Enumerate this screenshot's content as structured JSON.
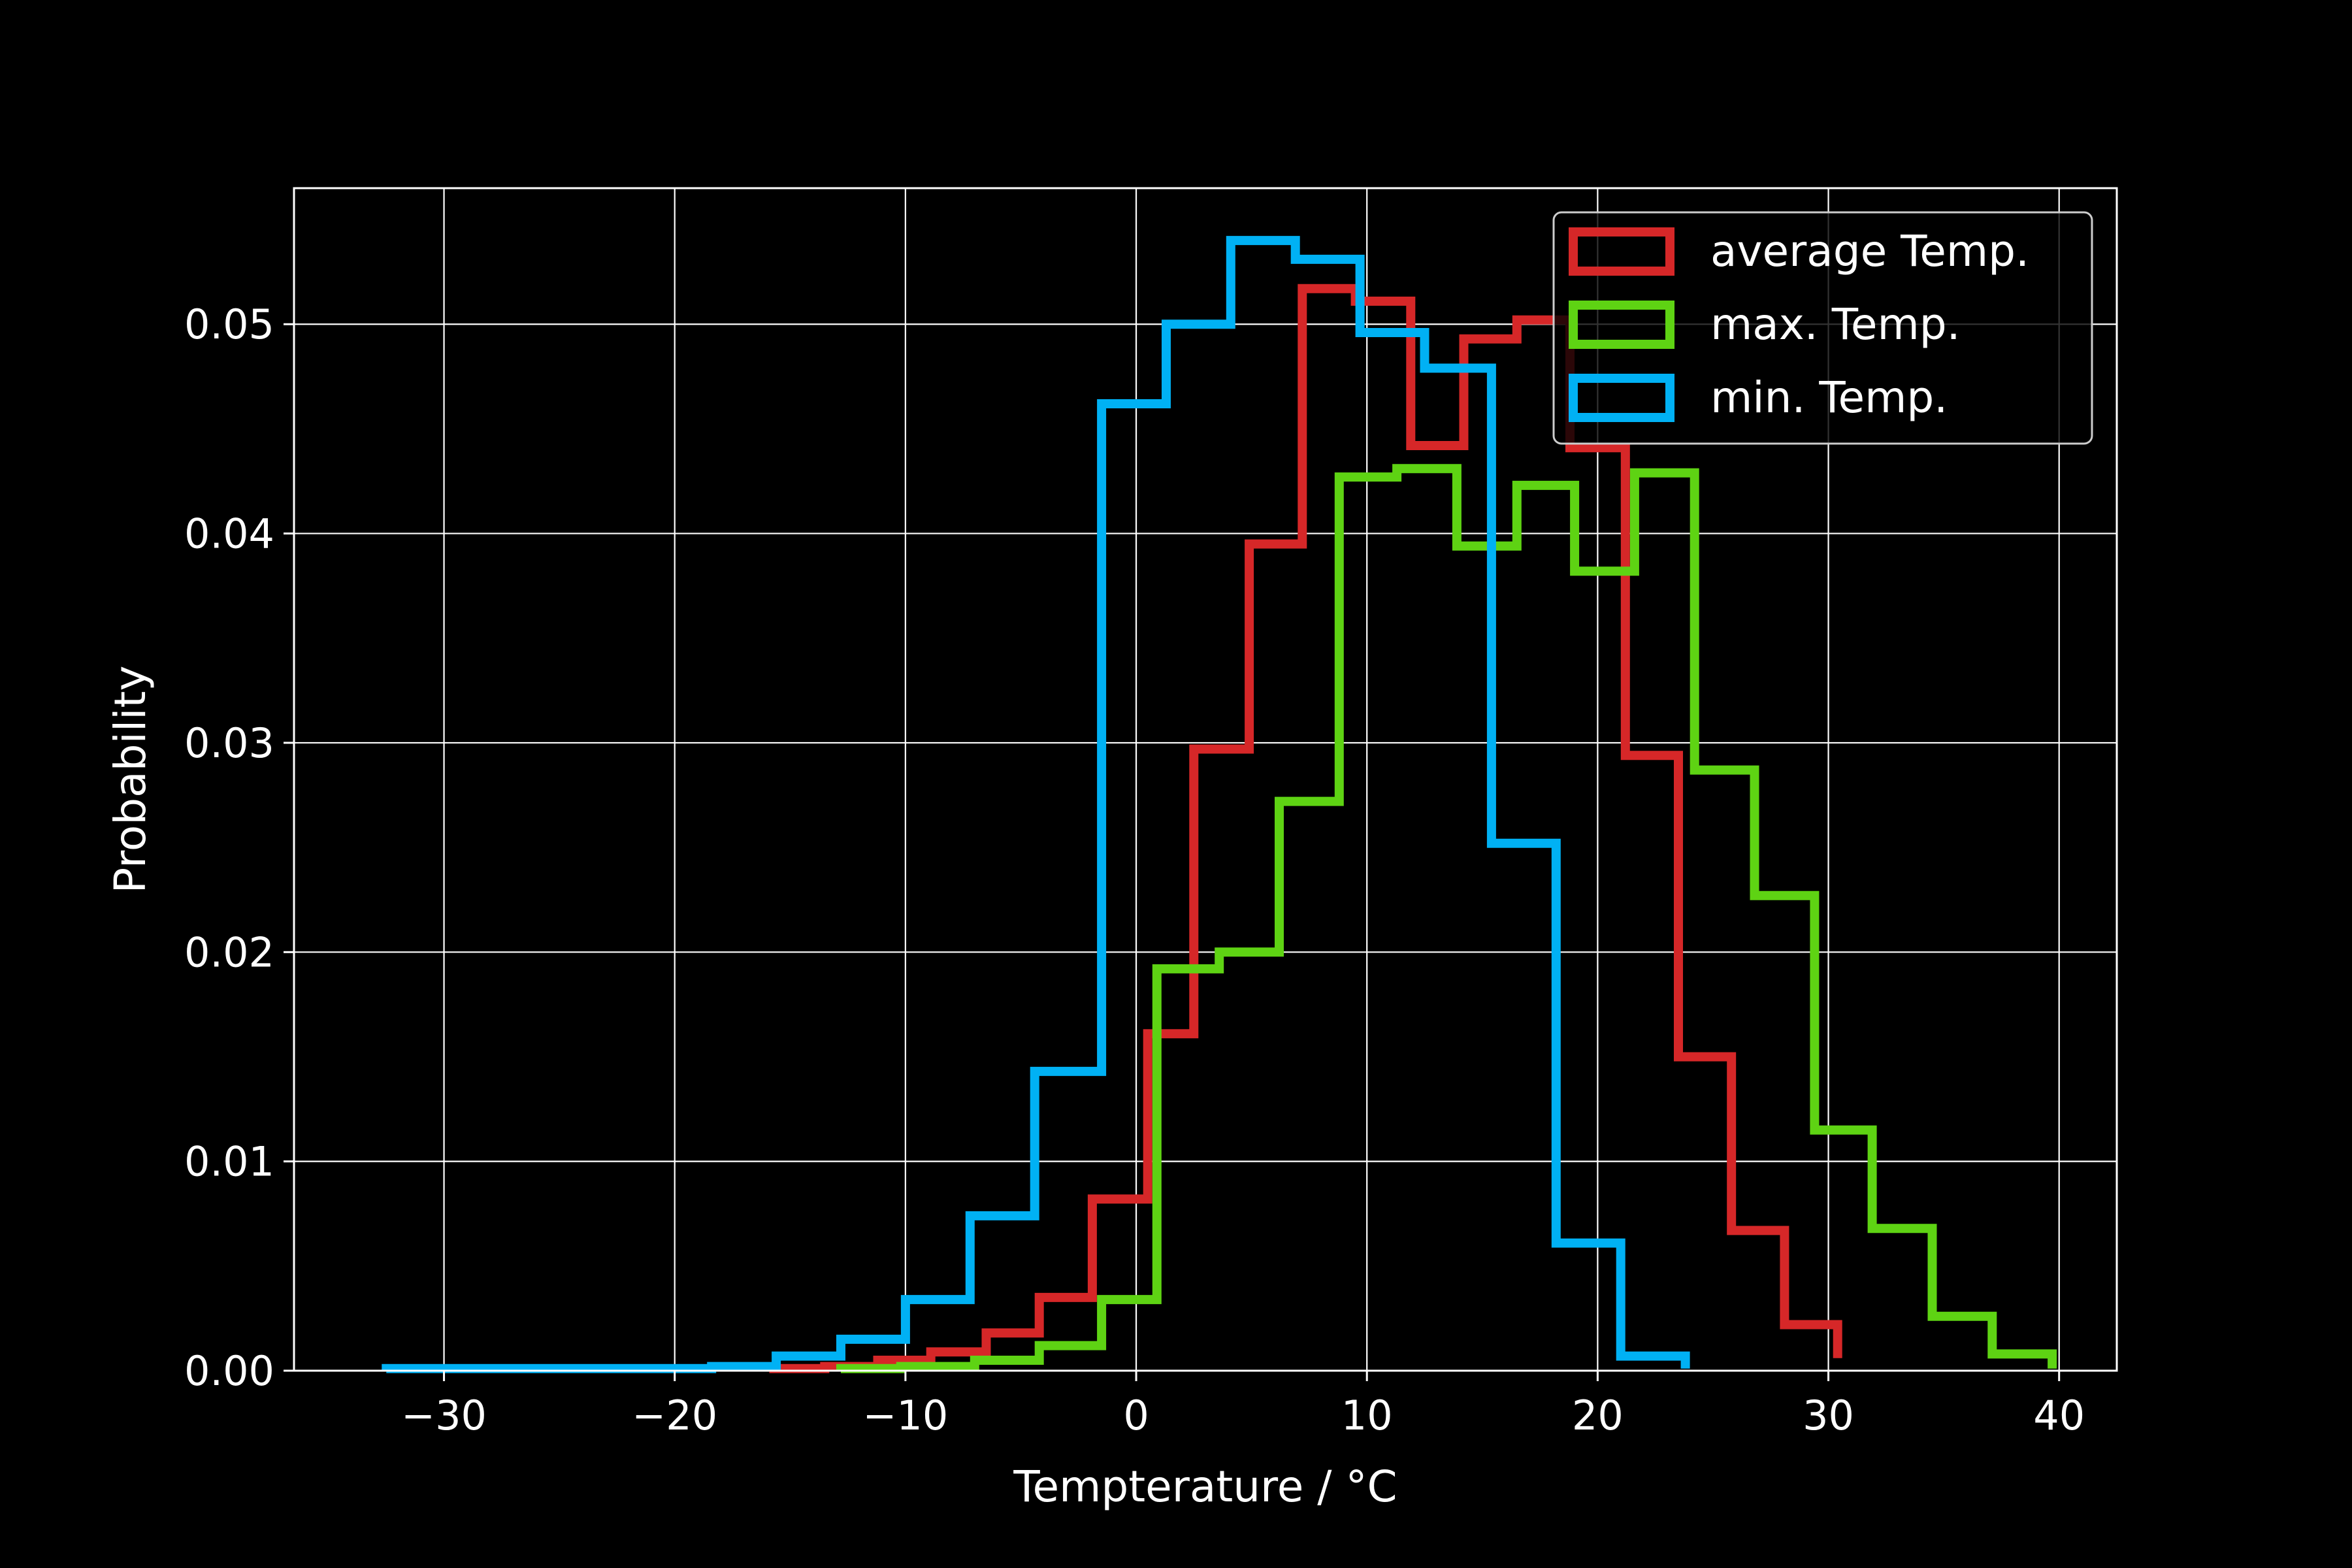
{
  "chart_data": {
    "type": "histogram-step",
    "title": "",
    "xlabel": "Tempterature / °C",
    "ylabel": "Probability",
    "xlim": [
      -36.5,
      42.5
    ],
    "ylim": [
      0,
      0.0565
    ],
    "xticks": [
      -30,
      -20,
      -10,
      0,
      10,
      20,
      30,
      40
    ],
    "xtick_labels": [
      "−30",
      "−20",
      "−10",
      "0",
      "10",
      "20",
      "30",
      "40"
    ],
    "yticks": [
      0.0,
      0.01,
      0.02,
      0.03,
      0.04,
      0.05
    ],
    "ytick_labels": [
      "0.00",
      "0.01",
      "0.02",
      "0.03",
      "0.04",
      "0.05"
    ],
    "grid": true,
    "legend_position": "upper right",
    "background": "#000000",
    "foreground": "#ffffff",
    "series": [
      {
        "name": "average Temp.",
        "color": "#d62728",
        "edges": [
          -15.9,
          -13.5,
          -11.2,
          -8.9,
          -6.5,
          -4.2,
          -1.9,
          0.5,
          2.5,
          4.9,
          7.2,
          9.5,
          11.9,
          14.2,
          16.5,
          18.8,
          21.2,
          23.5,
          25.8,
          28.1,
          30.4
        ],
        "values": [
          0.0001,
          0.0002,
          0.0005,
          0.0009,
          0.0018,
          0.0035,
          0.0082,
          0.0161,
          0.0297,
          0.0395,
          0.0517,
          0.0511,
          0.0442,
          0.0493,
          0.0502,
          0.0441,
          0.0294,
          0.015,
          0.0067,
          0.0022,
          0.0006
        ]
      },
      {
        "name": "max. Temp.",
        "color": "#5ed313",
        "edges": [
          -12.8,
          -10.2,
          -7.0,
          -4.2,
          -1.5,
          0.9,
          3.6,
          6.2,
          8.8,
          11.3,
          13.9,
          16.5,
          19.0,
          21.6,
          24.2,
          26.8,
          29.4,
          31.9,
          34.5,
          37.1,
          39.7
        ],
        "values": [
          0.0001,
          0.0002,
          0.0005,
          0.0012,
          0.0034,
          0.0192,
          0.02,
          0.0272,
          0.0427,
          0.0431,
          0.0394,
          0.0423,
          0.0382,
          0.0429,
          0.0287,
          0.0227,
          0.0115,
          0.0068,
          0.0026,
          0.0008,
          0.0001
        ]
      },
      {
        "name": "min. Temp.",
        "color": "#00b1f4",
        "edges": [
          -32.5,
          -29.7,
          -26.8,
          -24.0,
          -21.2,
          -18.4,
          -15.6,
          -12.8,
          -10.0,
          -7.2,
          -4.4,
          -1.5,
          1.3,
          4.1,
          6.9,
          9.7,
          12.5,
          15.4,
          18.2,
          21.0,
          23.8
        ],
        "values": [
          0.0001,
          0.0001,
          0.0001,
          0.0001,
          0.0001,
          0.0002,
          0.0007,
          0.0015,
          0.0034,
          0.0074,
          0.0143,
          0.0462,
          0.05,
          0.054,
          0.0531,
          0.0496,
          0.0479,
          0.0252,
          0.0061,
          0.0007,
          0.0001
        ]
      }
    ]
  }
}
